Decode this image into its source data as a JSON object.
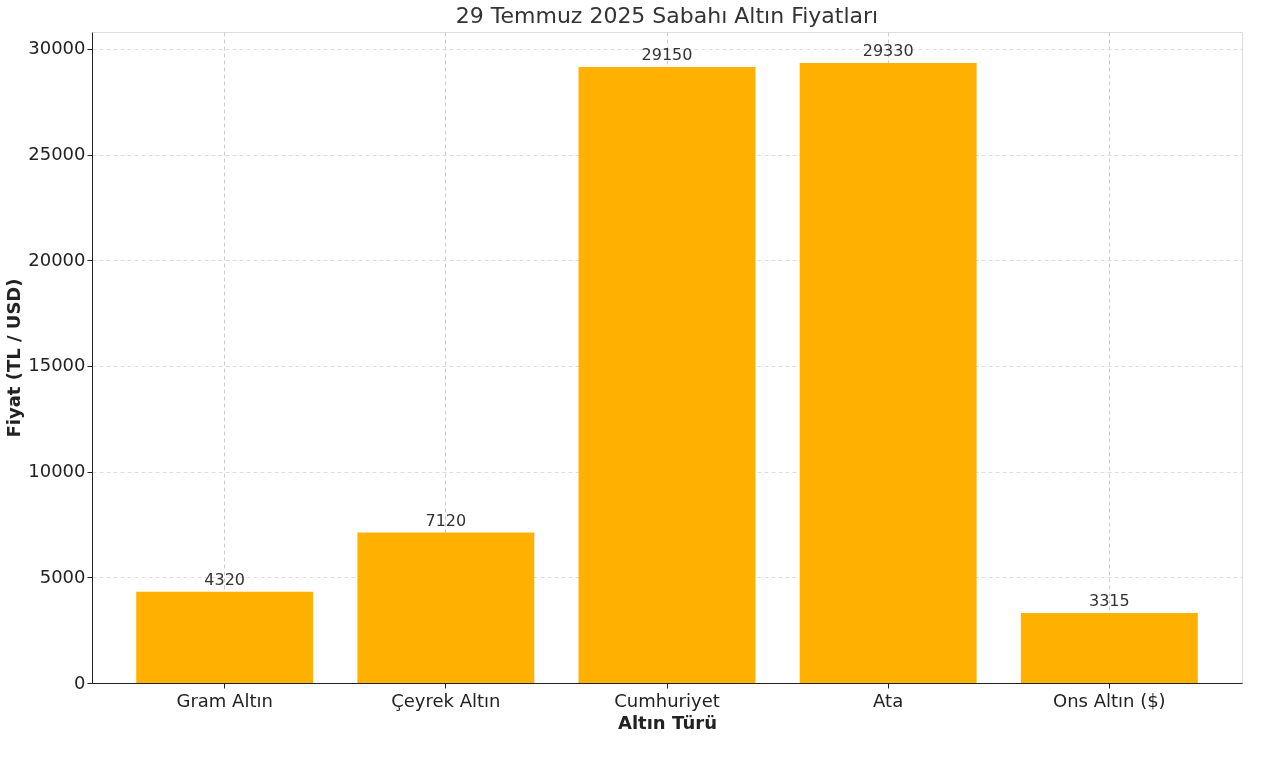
{
  "chart_data": {
    "type": "bar",
    "title": "29 Temmuz 2025 Sabahı Altın Fiyatları",
    "xlabel": "Altın Türü",
    "ylabel": "Fiyat (TL / USD)",
    "categories": [
      "Gram Altın",
      "Çeyrek Altın",
      "Cumhuriyet",
      "Ata",
      "Ons Altın ($)"
    ],
    "values": [
      4320,
      7120,
      29150,
      29330,
      3315
    ],
    "color": "#ffb000",
    "ylim": [
      0,
      30800
    ],
    "yticks": [
      0,
      5000,
      10000,
      15000,
      20000,
      25000,
      30000
    ],
    "grid": true,
    "data_labels": true
  }
}
